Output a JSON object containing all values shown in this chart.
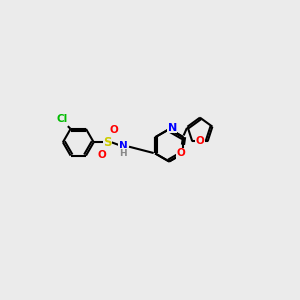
{
  "background_color": "#ebebeb",
  "atom_colors": {
    "C": "#000000",
    "N": "#0000ff",
    "O": "#ff0000",
    "S": "#cccc00",
    "Cl": "#00bb00",
    "H": "#888888"
  },
  "bg": "#ebebeb"
}
